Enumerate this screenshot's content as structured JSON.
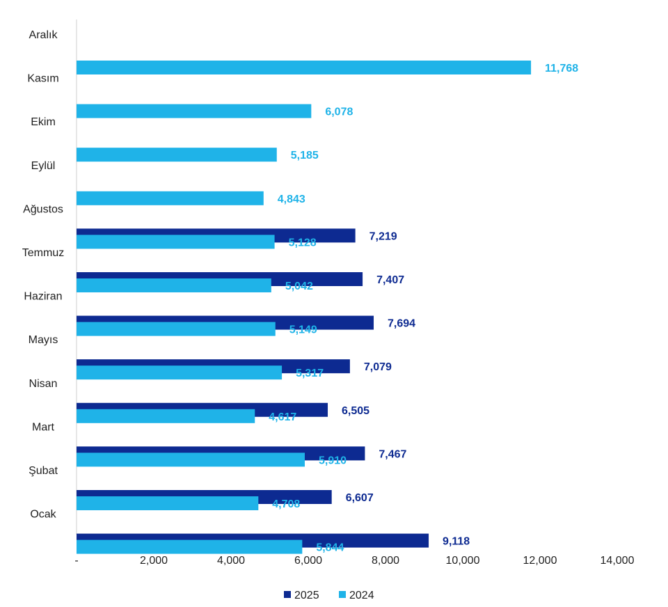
{
  "chart_data": {
    "type": "bar",
    "orientation": "horizontal",
    "categories": [
      "Aralık",
      "Kasım",
      "Ekim",
      "Eylül",
      "Ağustos",
      "Temmuz",
      "Haziran",
      "Mayıs",
      "Nisan",
      "Mart",
      "Şubat",
      "Ocak"
    ],
    "series": [
      {
        "name": "2025",
        "color": "#0d2a91",
        "values": [
          null,
          null,
          null,
          null,
          7219,
          7407,
          7694,
          7079,
          6505,
          7467,
          6607,
          9118
        ],
        "labels": [
          "",
          "",
          "",
          "",
          "7,219",
          "7,407",
          "7,694",
          "7,079",
          "6,505",
          "7,467",
          "6,607",
          "9,118"
        ]
      },
      {
        "name": "2024",
        "color": "#1fb3e8",
        "values": [
          11768,
          6078,
          5185,
          4843,
          5128,
          5042,
          5149,
          5317,
          4617,
          5910,
          4708,
          5844
        ],
        "labels": [
          "11,768",
          "6,078",
          "5,185",
          "4,843",
          "5,128",
          "5,042",
          "5,149",
          "5,317",
          "4,617",
          "5,910",
          "4,708",
          "5,844"
        ]
      }
    ],
    "xlim": [
      0,
      14000
    ],
    "x_ticks": [
      0,
      2000,
      4000,
      6000,
      8000,
      10000,
      12000,
      14000
    ],
    "x_tick_labels": [
      "-",
      "2,000",
      "4,000",
      "6,000",
      "8,000",
      "10,000",
      "12,000",
      "14,000"
    ],
    "grid": false,
    "legend_position": "bottom-center",
    "title": "",
    "xlabel": "",
    "ylabel": ""
  }
}
